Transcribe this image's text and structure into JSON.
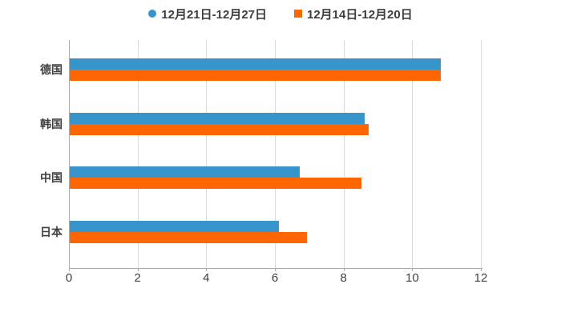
{
  "background_color": "#ffffff",
  "legend": {
    "items": [
      {
        "label": "12月21日-12月27日",
        "color": "#3795cb",
        "marker": "circle"
      },
      {
        "label": "12月14日-12月20日",
        "color": "#ff6600",
        "marker": "square"
      }
    ]
  },
  "chart_data": {
    "type": "bar",
    "orientation": "horizontal",
    "title": "",
    "xlabel": "",
    "ylabel": "",
    "categories": [
      "德国",
      "韩国",
      "中国",
      "日本"
    ],
    "series": [
      {
        "name": "12月21日-12月27日",
        "color": "#3795cb",
        "values": [
          10.8,
          8.6,
          6.7,
          6.1
        ]
      },
      {
        "name": "12月14日-12月20日",
        "color": "#ff6600",
        "values": [
          10.8,
          8.7,
          8.5,
          6.9
        ]
      }
    ],
    "xlim": [
      0,
      12
    ],
    "xticks": [
      0,
      2,
      4,
      6,
      8,
      10,
      12
    ],
    "grid": "vertical",
    "legend_position": "top",
    "grid_color": "#d9d9d9",
    "axis_color": "#aaaaaa",
    "text_color": "#3f3f3f"
  }
}
